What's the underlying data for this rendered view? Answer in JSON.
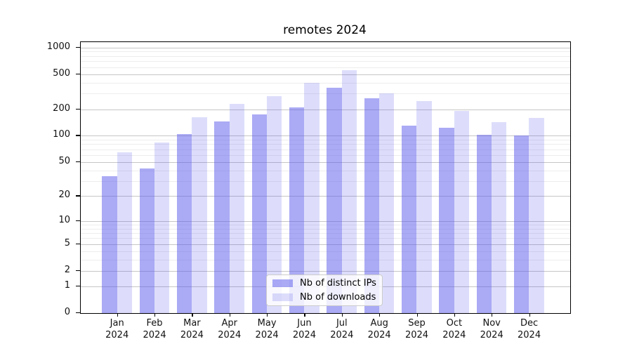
{
  "chart_data": {
    "type": "bar",
    "title": "remotes 2024",
    "categories": [
      "Jan",
      "Feb",
      "Mar",
      "Apr",
      "May",
      "Jun",
      "Jul",
      "Aug",
      "Sep",
      "Oct",
      "Nov",
      "Dec"
    ],
    "x_sublabel": "2024",
    "series": [
      {
        "name": "Nb of distinct IPs",
        "fill": "rgba(85,85,235,0.5)",
        "values": [
          34,
          42,
          104,
          146,
          173,
          210,
          350,
          265,
          130,
          122,
          103,
          100
        ]
      },
      {
        "name": "Nb of downloads",
        "fill": "rgba(85,85,235,0.2)",
        "values": [
          65,
          84,
          161,
          228,
          280,
          395,
          555,
          300,
          247,
          190,
          143,
          160
        ]
      }
    ],
    "y_scale": "log1p",
    "ylim": [
      0,
      1150
    ],
    "y_ticks": [
      0,
      1,
      2,
      5,
      10,
      20,
      50,
      100,
      200,
      500,
      1000
    ],
    "y_minor_ticks": [
      3,
      4,
      6,
      7,
      8,
      9,
      30,
      40,
      60,
      70,
      80,
      90,
      300,
      400,
      600,
      700,
      800,
      900
    ],
    "grid": true,
    "legend_position": "lower-center-inside",
    "colors": {
      "bar_dark": "#aaaaee",
      "bar_light": "#ddddf8",
      "grid_major": "#c6c6c6",
      "grid_minor": "#ededed"
    }
  }
}
